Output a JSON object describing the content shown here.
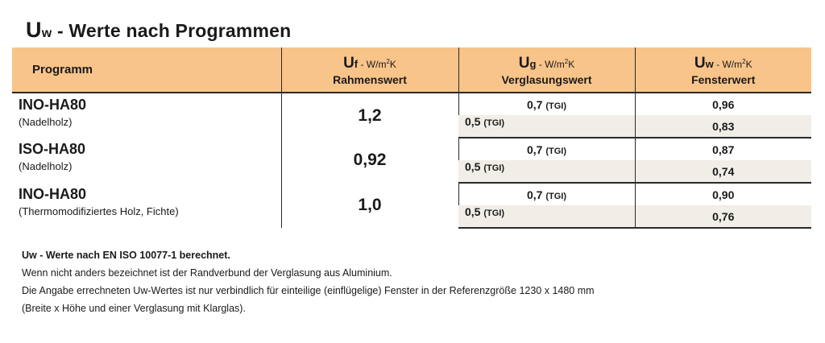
{
  "title": {
    "main_char": "U",
    "main_sub": "w",
    "rest": " - Werte nach Programmen"
  },
  "table": {
    "headers": {
      "program": "Programm",
      "uf": {
        "symbol": "U",
        "sub": "f",
        "unit_prefix": " - W/m",
        "unit_sup": "2",
        "unit_suffix": "K",
        "label": "Rahmenswert"
      },
      "ug": {
        "symbol": "U",
        "sub": "g",
        "unit_prefix": " - W/m",
        "unit_sup": "2",
        "unit_suffix": "K",
        "label": "Verglasungswert"
      },
      "uw": {
        "symbol": "U",
        "sub": "w",
        "unit_prefix": " - W/m",
        "unit_sup": "2",
        "unit_suffix": "K",
        "label": "Fensterwert"
      }
    },
    "rows": [
      {
        "name": "INO-HA80",
        "wood": "(Nadelholz)",
        "uf": "1,2",
        "glass": [
          {
            "ug": "0,7",
            "tgi": "(TGI)",
            "uw": "0,96"
          },
          {
            "ug": "0,5",
            "tgi": "(TGI)",
            "uw": "0,83"
          }
        ]
      },
      {
        "name": "ISO-HA80",
        "wood": "(Nadelholz)",
        "uf": "0,92",
        "glass": [
          {
            "ug": "0,7",
            "tgi": "(TGI)",
            "uw": "0,87"
          },
          {
            "ug": "0,5",
            "tgi": "(TGI)",
            "uw": "0,74"
          }
        ]
      },
      {
        "name": "INO-HA80",
        "wood": "(Thermomodifiziertes Holz, Fichte)",
        "uf": "1,0",
        "glass": [
          {
            "ug": "0,7",
            "tgi": "(TGI)",
            "uw": "0,90"
          },
          {
            "ug": "0,5",
            "tgi": "(TGI)",
            "uw": "0,76"
          }
        ]
      }
    ]
  },
  "notes": {
    "line1": "Uw - Werte nach EN ISO 10077-1 berechnet.",
    "line2": "Wenn nicht anders bezeichnet ist der Randverbund der Verglasung aus Aluminium.",
    "line3": "Die Angabe errechneten Uw-Wertes ist nur verbindlich für einteilige (einflügelige) Fenster in der Referenzgröße 1230 x 1480 mm",
    "line4": "(Breite x Höhe und einer Verglasung mit Klarglas)."
  },
  "colors": {
    "header_bg": "#f8c48a",
    "alt_row_bg": "#f1ede7",
    "rule": "#2a2a2a"
  }
}
